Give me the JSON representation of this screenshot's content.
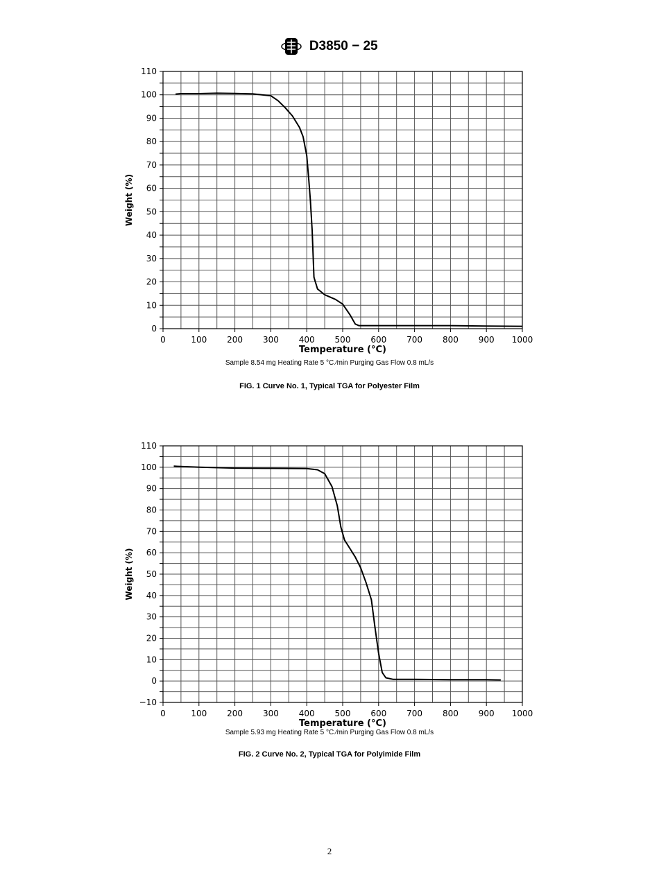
{
  "header": {
    "logo_text": "ASTM",
    "doc_id": "D3850 − 25"
  },
  "chart_data": [
    {
      "type": "line",
      "xlabel": "Temperature (°C)",
      "ylabel": "Weight (%)",
      "xlim": [
        0,
        1000
      ],
      "ylim": [
        0,
        110
      ],
      "xticks": [
        0,
        100,
        200,
        300,
        400,
        500,
        600,
        700,
        800,
        900,
        1000
      ],
      "yticks": [
        0,
        10,
        20,
        30,
        40,
        50,
        60,
        70,
        80,
        90,
        100,
        110
      ],
      "grid": true,
      "x": [
        35,
        50,
        100,
        150,
        200,
        250,
        300,
        320,
        340,
        360,
        380,
        390,
        400,
        405,
        410,
        415,
        420,
        430,
        450,
        480,
        500,
        520,
        535,
        545,
        600,
        700,
        800,
        900,
        1000
      ],
      "y": [
        100.3,
        100.5,
        100.5,
        100.7,
        100.6,
        100.4,
        99.6,
        97.5,
        94.5,
        91,
        86,
        82,
        74,
        65,
        55,
        42,
        22,
        17,
        14.5,
        12.5,
        10.5,
        6,
        2,
        1.3,
        1.3,
        1.3,
        1.3,
        1.1,
        1.0
      ],
      "sample_note": "Sample 8.54 mg Heating Rate 5 °C ⁄min Purging Gas Flow 0.8 mL/s",
      "caption": "FIG. 1  Curve No. 1, Typical TGA for Polyester Film"
    },
    {
      "type": "line",
      "xlabel": "Temperature (°C)",
      "ylabel": "Weight (%)",
      "xlim": [
        0,
        1000
      ],
      "ylim": [
        -10,
        110
      ],
      "xticks": [
        0,
        100,
        200,
        300,
        400,
        500,
        600,
        700,
        800,
        900,
        1000
      ],
      "yticks": [
        -10,
        0,
        10,
        20,
        30,
        40,
        50,
        60,
        70,
        80,
        90,
        100,
        110
      ],
      "grid": true,
      "x": [
        30,
        100,
        200,
        300,
        400,
        430,
        450,
        470,
        485,
        495,
        505,
        520,
        535,
        550,
        565,
        580,
        590,
        600,
        610,
        620,
        640,
        700,
        800,
        900,
        940
      ],
      "y": [
        100.5,
        100,
        99.6,
        99.5,
        99.4,
        98.8,
        97,
        91,
        82,
        72,
        66,
        62,
        58,
        53,
        46,
        38,
        25,
        13,
        4,
        1.5,
        0.8,
        0.8,
        0.6,
        0.6,
        0.5
      ],
      "sample_note": "Sample 5.93 mg Heating Rate 5 °C ⁄min Purging Gas Flow 0.8 mL/s",
      "caption": "FIG. 2  Curve No. 2, Typical TGA for Polyimide Film"
    }
  ],
  "page_number": "2"
}
